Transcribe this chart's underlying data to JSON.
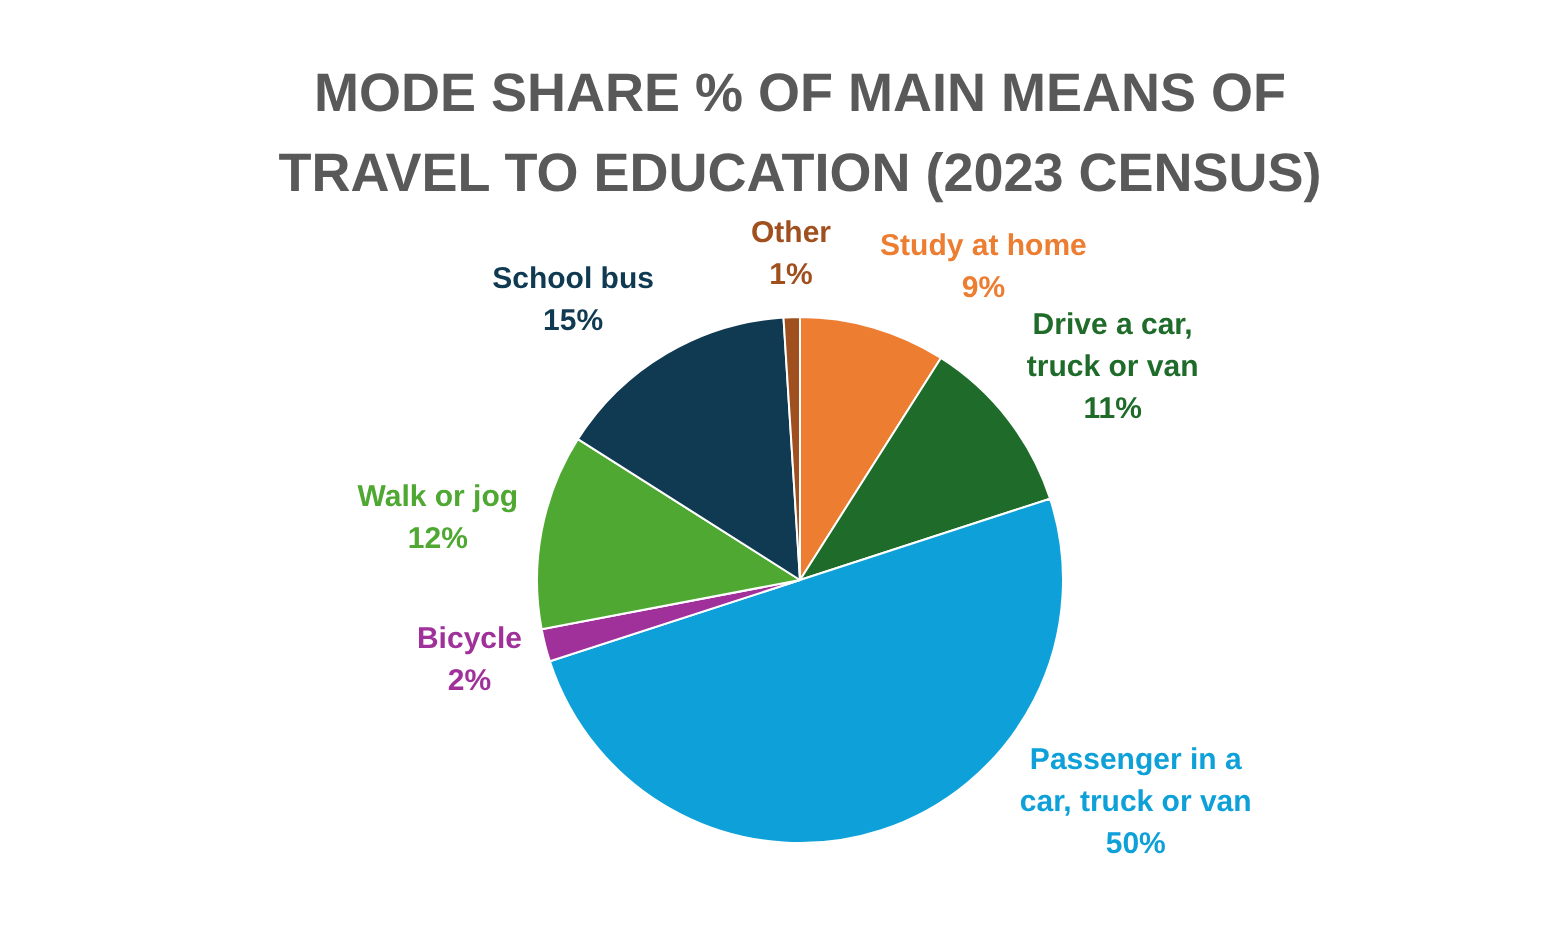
{
  "chart_data": {
    "type": "pie",
    "title": "MODE SHARE % OF MAIN MEANS OF TRAVEL TO EDUCATION (2023 CENSUS)",
    "categories": [
      "Study at home",
      "Drive a car, truck or van",
      "Passenger in a car, truck or van",
      "Bicycle",
      "Walk or jog",
      "School bus",
      "Other"
    ],
    "values": [
      9,
      11,
      50,
      2,
      12,
      15,
      1
    ],
    "colors": [
      "#ed7d31",
      "#1e6b2a",
      "#0ea0d8",
      "#a0309a",
      "#4fa832",
      "#0f3a52",
      "#a0501e"
    ],
    "value_labels": [
      "9%",
      "11%",
      "50%",
      "2%",
      "12%",
      "15%",
      "1%"
    ]
  }
}
